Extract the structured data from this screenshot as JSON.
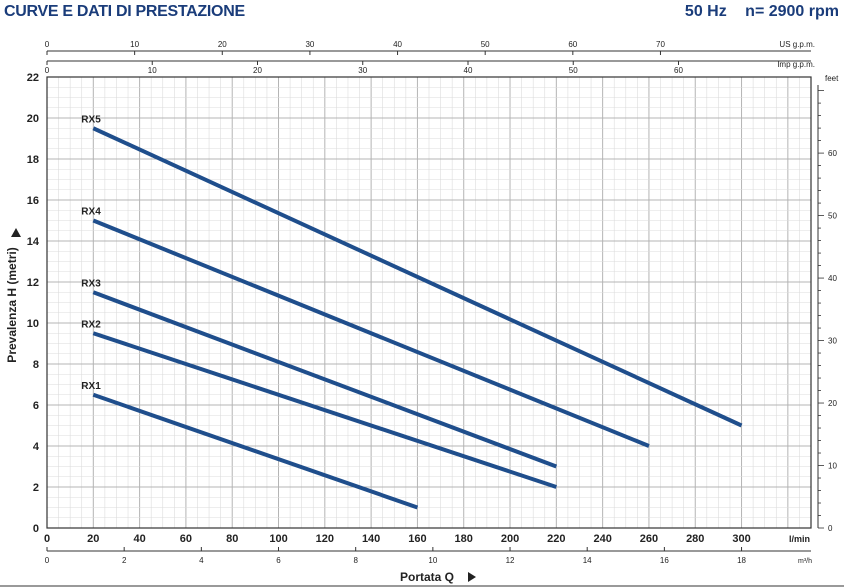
{
  "header": {
    "title": "CURVE E DATI DI PRESTAZIONE",
    "frequency": "50 Hz",
    "speed": "n= 2900 rpm"
  },
  "chart_data": {
    "type": "line",
    "ylabel": "Prevalenza H (metri)",
    "xlabel": "Portata Q",
    "xlim": [
      0,
      330
    ],
    "ylim": [
      0,
      22
    ],
    "x_unit": "l/min",
    "y_ticks": [
      0,
      2,
      4,
      6,
      8,
      10,
      12,
      14,
      16,
      18,
      20,
      22
    ],
    "x_ticks_lmin": [
      0,
      20,
      40,
      60,
      80,
      100,
      120,
      140,
      160,
      180,
      200,
      220,
      240,
      260,
      280,
      300
    ],
    "axis_m3h": {
      "unit": "m³/h",
      "ticks": [
        0,
        2,
        4,
        6,
        8,
        10,
        12,
        14,
        16,
        18
      ]
    },
    "axis_usgpm": {
      "unit": "US g.p.m.",
      "ticks": [
        0,
        10,
        20,
        30,
        40,
        50,
        60,
        70
      ]
    },
    "axis_impgpm": {
      "unit": "Imp g.p.m.",
      "ticks": [
        0,
        10,
        20,
        30,
        40,
        50,
        60
      ]
    },
    "axis_feet": {
      "unit": "feet",
      "ticks": [
        0,
        10,
        20,
        30,
        40,
        50,
        60
      ]
    },
    "series": [
      {
        "name": "RX5",
        "x": [
          20,
          300
        ],
        "y": [
          19.5,
          5
        ]
      },
      {
        "name": "RX4",
        "x": [
          20,
          260
        ],
        "y": [
          15,
          4
        ]
      },
      {
        "name": "RX3",
        "x": [
          20,
          220
        ],
        "y": [
          11.5,
          3
        ]
      },
      {
        "name": "RX2",
        "x": [
          20,
          220
        ],
        "y": [
          9.5,
          2
        ]
      },
      {
        "name": "RX1",
        "x": [
          20,
          160
        ],
        "y": [
          6.5,
          1
        ]
      }
    ],
    "line_color": "#1f4e8c",
    "grid": true
  }
}
